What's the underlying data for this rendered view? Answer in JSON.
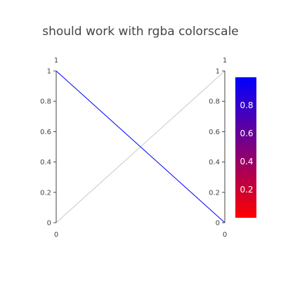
{
  "chart_data": {
    "type": "parcoords",
    "title": "should work with rgba colorscale",
    "dimensions": [
      {
        "label": "",
        "range": [
          0,
          1
        ],
        "range_top_label": "1",
        "range_bottom_label": "0",
        "tickvals": [
          0,
          0.2,
          0.4,
          0.6,
          0.8,
          1
        ],
        "ticktext": [
          "0",
          "0.2",
          "0.4",
          "0.6",
          "0.8",
          "1"
        ]
      },
      {
        "label": "",
        "range": [
          0,
          1
        ],
        "range_top_label": "1",
        "range_bottom_label": "0",
        "tickvals": [
          0,
          0.2,
          0.4,
          0.6,
          0.8,
          1
        ],
        "ticktext": [
          "0",
          "0.2",
          "0.4",
          "0.6",
          "0.8",
          "1"
        ]
      }
    ],
    "lines": [
      {
        "values": [
          0,
          1
        ],
        "color_value": 0,
        "color": "#c8c8c8"
      },
      {
        "values": [
          1,
          0
        ],
        "color_value": 1,
        "color": "#0000ff"
      }
    ],
    "colorbar": {
      "range": [
        0,
        1
      ],
      "colorscale": [
        [
          0,
          "#ff0000"
        ],
        [
          1,
          "#0000ff"
        ]
      ],
      "tickvals": [
        0.2,
        0.4,
        0.6,
        0.8
      ],
      "ticktext": [
        "0.2",
        "0.4",
        "0.6",
        "0.8"
      ]
    }
  }
}
